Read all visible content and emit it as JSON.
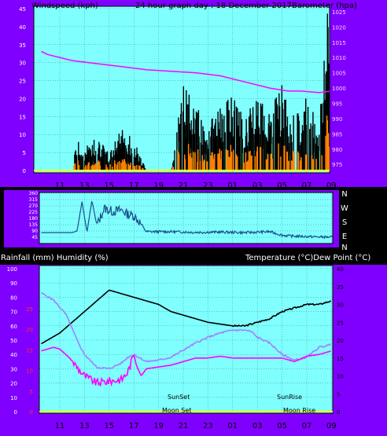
{
  "header": {
    "left": "Windspeed (kph)",
    "center": "24 hour graph day : 18 December 2017",
    "right": "Barometer (hpa)"
  },
  "section3_header": {
    "left": "Rainfall (mm)  Humidity (%)",
    "right": "Temperature (°C)Dew Point (°C)"
  },
  "time_labels": [
    "11",
    "13",
    "15",
    "17",
    "19",
    "21",
    "23",
    "01",
    "03",
    "05",
    "07",
    "09"
  ],
  "colors": {
    "frame_purple": "#8000ff",
    "plot_bg": "#80ffff",
    "wind_avg": "#000000",
    "wind_gust_fill": "#ff8000",
    "wind_green": "#80ff80",
    "barometer": "#ff00ff",
    "direction": "#1a4f8c",
    "temperature": "#000000",
    "humidity": "#a080ff",
    "dewpoint": "#ff00ff",
    "rain": "#ffff00",
    "zero_line": "#ffff00"
  },
  "chart_data": [
    {
      "type": "line",
      "title": "24 hour graph day : 18 December 2017",
      "left_axis": {
        "label": "Windspeed (kph)",
        "ticks": [
          0,
          5,
          10,
          15,
          20,
          25,
          30,
          35,
          40,
          45
        ],
        "range": [
          0,
          45
        ]
      },
      "right_axis": {
        "label": "Barometer (hpa)",
        "ticks": [
          975,
          980,
          985,
          990,
          995,
          1000,
          1005,
          1010,
          1015,
          1020,
          1025
        ],
        "range": [
          972,
          1026
        ]
      },
      "x_ticks": [
        "11",
        "13",
        "15",
        "17",
        "19",
        "21",
        "23",
        "01",
        "03",
        "05",
        "07",
        "09"
      ],
      "series": [
        {
          "name": "Barometer (hpa)",
          "axis": "right",
          "x": [
            9.5,
            10,
            12,
            14,
            16,
            18,
            20,
            22,
            24,
            26,
            28,
            29.5,
            30.5,
            32,
            33
          ],
          "values": [
            1012,
            1011,
            1009,
            1008,
            1007,
            1006,
            1005.5,
            1005,
            1004,
            1002,
            1000,
            999,
            999,
            998.5,
            999
          ]
        },
        {
          "name": "Windspeed (kph)",
          "axis": "left",
          "x": [
            10,
            12,
            12.3,
            13,
            14,
            15,
            16,
            17,
            18,
            19,
            20,
            21,
            22,
            23,
            24,
            25,
            26,
            27,
            28,
            29,
            30,
            31,
            32,
            32.7,
            33
          ],
          "values": [
            0,
            0,
            6,
            4,
            7,
            3,
            9,
            6,
            0,
            0,
            0,
            16,
            12,
            9,
            12,
            14,
            10,
            15,
            12,
            16,
            10,
            14,
            9,
            30,
            12
          ]
        }
      ]
    },
    {
      "type": "line",
      "left_axis": {
        "ticks": [
          45,
          90,
          135,
          180,
          225,
          270,
          315,
          360
        ],
        "range": [
          0,
          360
        ]
      },
      "right_labels": [
        "N",
        "W",
        "S",
        "E",
        "N"
      ],
      "series": [
        {
          "name": "Wind direction",
          "x": [
            9.5,
            12,
            12.4,
            12.8,
            13.2,
            13.6,
            14,
            14.6,
            15.3,
            16,
            16.5,
            17,
            17.5,
            18,
            20,
            22,
            24,
            26,
            28,
            29,
            29.5,
            31,
            33
          ],
          "values": [
            78,
            78,
            90,
            300,
            80,
            310,
            130,
            250,
            230,
            240,
            210,
            200,
            150,
            85,
            85,
            80,
            82,
            78,
            85,
            60,
            55,
            50,
            45
          ]
        }
      ]
    },
    {
      "type": "line",
      "left_axis": {
        "label": "Rainfall (mm)  Humidity (%)",
        "ticks": [
          0,
          10,
          20,
          30,
          40,
          50,
          60,
          70,
          80,
          90,
          100
        ],
        "range": [
          0,
          100
        ]
      },
      "right_axis": {
        "label": "Temperature (°C)Dew Point (°C)",
        "ticks": [
          0,
          5,
          10,
          15,
          20,
          25,
          30,
          35,
          40
        ],
        "range": [
          0,
          40
        ]
      },
      "inner_left_ticks": [
        0,
        5,
        10,
        15,
        20,
        25
      ],
      "annotations": [
        "SunSet",
        "SunRise",
        "Moon Set",
        "Moon Rise"
      ],
      "series": [
        {
          "name": "Temperature (°C)",
          "axis": "right",
          "x": [
            9.5,
            11,
            12,
            13,
            14,
            15,
            16,
            17,
            18,
            19,
            20,
            21,
            22,
            23,
            24,
            25,
            26,
            27,
            28,
            29,
            30,
            31,
            32,
            33
          ],
          "values": [
            19,
            22,
            25,
            28,
            31,
            34,
            33,
            32,
            31,
            30,
            28,
            27,
            26,
            25,
            24.5,
            24,
            24,
            25,
            26,
            28,
            29,
            30,
            30,
            31
          ]
        },
        {
          "name": "Humidity (%)",
          "axis": "left",
          "x": [
            9.5,
            10.5,
            11.5,
            12,
            12.5,
            13,
            14,
            15,
            16,
            16.5,
            17,
            18,
            19,
            20,
            21,
            22,
            23,
            24,
            25,
            26,
            26.5,
            27,
            28,
            29,
            30,
            31,
            32,
            33
          ],
          "values": [
            83,
            78,
            68,
            58,
            48,
            40,
            31,
            30,
            34,
            38,
            40,
            35,
            36,
            38,
            43,
            48,
            52,
            55,
            57,
            57,
            56,
            52,
            48,
            40,
            36,
            38,
            45,
            47
          ]
        },
        {
          "name": "Dew Point (°C)",
          "axis": "right",
          "x": [
            9.5,
            10.5,
            11,
            11.8,
            12.5,
            13,
            14,
            15,
            16,
            16.5,
            17,
            17.2,
            17.6,
            18,
            19,
            20,
            21,
            22,
            23,
            24,
            25,
            26,
            27,
            28,
            29,
            30,
            31,
            32,
            33
          ],
          "values": [
            17,
            18,
            17.5,
            15,
            12,
            10,
            8,
            8.5,
            9,
            11,
            16,
            13,
            10,
            12,
            12.5,
            13,
            14,
            15,
            15,
            15.5,
            15,
            15,
            15,
            15,
            15,
            14,
            15.5,
            16,
            17
          ]
        }
      ]
    }
  ]
}
